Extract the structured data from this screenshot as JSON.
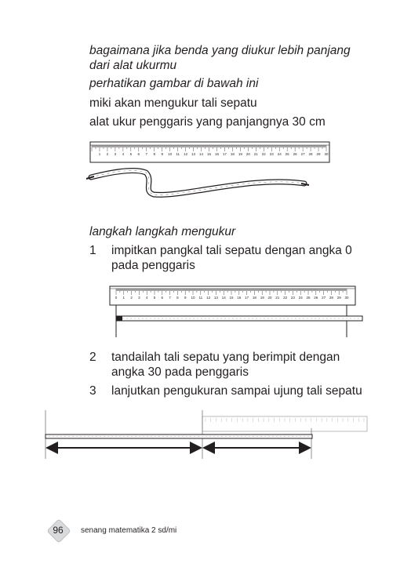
{
  "intro": {
    "line1": "bagaimana jika benda yang diukur lebih panjang",
    "line2": "dari alat ukurmu",
    "line3": "perhatikan gambar di bawah ini",
    "line4": "miki akan mengukur tali sepatu",
    "line5": "alat ukur penggaris yang panjangnya 30 cm"
  },
  "ruler1_labels": [
    "1",
    "2",
    "3",
    "4",
    "5",
    "6",
    "7",
    "8",
    "9",
    "10",
    "11",
    "12",
    "13",
    "14",
    "15",
    "16",
    "17",
    "18",
    "19",
    "20",
    "21",
    "22",
    "23",
    "24",
    "25",
    "26",
    "27",
    "28",
    "29",
    "30"
  ],
  "ruler2_labels": [
    "0",
    "1",
    "2",
    "3",
    "4",
    "5",
    "6",
    "7",
    "8",
    "9",
    "10",
    "11",
    "12",
    "13",
    "14",
    "15",
    "16",
    "17",
    "18",
    "19",
    "20",
    "21",
    "22",
    "23",
    "24",
    "25",
    "26",
    "27",
    "28",
    "29",
    "30"
  ],
  "steps": {
    "heading": "langkah langkah mengukur",
    "s1_num": "1",
    "s1_line1": "impitkan pangkal tali sepatu dengan angka 0",
    "s1_line2": "pada penggaris",
    "s2_num": "2",
    "s2_line1": "tandailah tali sepatu yang berimpit dengan",
    "s2_line2": "angka 30 pada penggaris",
    "s3_num": "3",
    "s3_line1": "lanjutkan pengukuran sampai ujung tali sepatu"
  },
  "footer": {
    "page_number": "96",
    "book_title": "senang matematika 2 sd/mi"
  }
}
